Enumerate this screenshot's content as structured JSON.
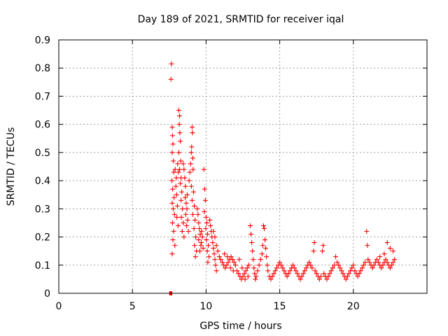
{
  "chart_data": {
    "type": "scatter",
    "title": "Day 189 of 2021, SRMTID for receiver iqal",
    "xlabel": "GPS time / hours",
    "ylabel": "SRMTID / TECUs",
    "xlim": [
      0,
      25
    ],
    "ylim": [
      0,
      0.9
    ],
    "xticks": [
      0,
      5,
      10,
      15,
      20
    ],
    "yticks": [
      0,
      0.1,
      0.2,
      0.3,
      0.4,
      0.5,
      0.6,
      0.7,
      0.8,
      0.9
    ],
    "xtick_labels": [
      "0",
      "5",
      "10",
      "15",
      "20"
    ],
    "ytick_labels": [
      "0",
      "0.1",
      "0.2",
      "0.3",
      "0.4",
      "0.5",
      "0.6",
      "0.7",
      "0.8",
      "0.9"
    ],
    "grid": true,
    "marker": "plus",
    "color": "#ff0000",
    "zero_band": {
      "x_start": 7.5,
      "x_end": 7.7,
      "y": 0
    },
    "series": [
      {
        "name": "SRMTID",
        "points": [
          [
            7.65,
            0.815
          ],
          [
            7.62,
            0.76
          ],
          [
            7.7,
            0.59
          ],
          [
            7.72,
            0.56
          ],
          [
            7.75,
            0.53
          ],
          [
            7.7,
            0.5
          ],
          [
            7.78,
            0.47
          ],
          [
            7.8,
            0.43
          ],
          [
            7.68,
            0.4
          ],
          [
            7.73,
            0.37
          ],
          [
            7.82,
            0.34
          ],
          [
            7.7,
            0.32
          ],
          [
            7.77,
            0.3
          ],
          [
            7.85,
            0.28
          ],
          [
            7.72,
            0.25
          ],
          [
            7.8,
            0.22
          ],
          [
            7.75,
            0.19
          ],
          [
            7.88,
            0.17
          ],
          [
            7.7,
            0.14
          ],
          [
            7.9,
            0.44
          ],
          [
            7.95,
            0.38
          ],
          [
            8.0,
            0.35
          ],
          [
            7.98,
            0.41
          ],
          [
            8.05,
            0.31
          ],
          [
            8.02,
            0.27
          ],
          [
            8.1,
            0.24
          ],
          [
            8.07,
            0.46
          ],
          [
            8.12,
            0.43
          ],
          [
            8.15,
            0.65
          ],
          [
            8.2,
            0.63
          ],
          [
            8.18,
            0.6
          ],
          [
            8.22,
            0.57
          ],
          [
            8.25,
            0.54
          ],
          [
            8.15,
            0.5
          ],
          [
            8.28,
            0.47
          ],
          [
            8.2,
            0.44
          ],
          [
            8.3,
            0.41
          ],
          [
            8.25,
            0.39
          ],
          [
            8.35,
            0.36
          ],
          [
            8.3,
            0.33
          ],
          [
            8.4,
            0.3
          ],
          [
            8.32,
            0.27
          ],
          [
            8.45,
            0.25
          ],
          [
            8.38,
            0.22
          ],
          [
            8.5,
            0.2
          ],
          [
            8.45,
            0.46
          ],
          [
            8.5,
            0.44
          ],
          [
            8.55,
            0.41
          ],
          [
            8.6,
            0.38
          ],
          [
            8.58,
            0.34
          ],
          [
            8.65,
            0.32
          ],
          [
            8.7,
            0.3
          ],
          [
            8.62,
            0.28
          ],
          [
            8.75,
            0.26
          ],
          [
            8.68,
            0.24
          ],
          [
            8.8,
            0.22
          ],
          [
            8.72,
            0.35
          ],
          [
            8.85,
            0.4
          ],
          [
            8.9,
            0.43
          ],
          [
            8.95,
            0.46
          ],
          [
            9.0,
            0.5
          ],
          [
            9.02,
            0.52
          ],
          [
            9.05,
            0.59
          ],
          [
            9.08,
            0.57
          ],
          [
            9.1,
            0.48
          ],
          [
            9.12,
            0.44
          ],
          [
            9.0,
            0.38
          ],
          [
            9.15,
            0.36
          ],
          [
            9.05,
            0.33
          ],
          [
            9.2,
            0.31
          ],
          [
            9.1,
            0.28
          ],
          [
            9.25,
            0.26
          ],
          [
            9.18,
            0.23
          ],
          [
            9.3,
            0.2
          ],
          [
            9.22,
            0.17
          ],
          [
            9.35,
            0.15
          ],
          [
            9.28,
            0.13
          ],
          [
            9.4,
            0.3
          ],
          [
            9.45,
            0.28
          ],
          [
            9.5,
            0.25
          ],
          [
            9.55,
            0.23
          ],
          [
            9.6,
            0.21
          ],
          [
            9.5,
            0.19
          ],
          [
            9.65,
            0.17
          ],
          [
            9.58,
            0.15
          ],
          [
            9.7,
            0.22
          ],
          [
            9.75,
            0.2
          ],
          [
            9.68,
            0.18
          ],
          [
            9.8,
            0.16
          ],
          [
            9.85,
            0.44
          ],
          [
            9.9,
            0.37
          ],
          [
            9.95,
            0.33
          ],
          [
            9.88,
            0.29
          ],
          [
            10.0,
            0.27
          ],
          [
            10.05,
            0.25
          ],
          [
            9.98,
            0.23
          ],
          [
            10.1,
            0.21
          ],
          [
            10.02,
            0.19
          ],
          [
            10.15,
            0.17
          ],
          [
            10.08,
            0.15
          ],
          [
            10.2,
            0.13
          ],
          [
            10.12,
            0.11
          ],
          [
            10.25,
            0.26
          ],
          [
            10.3,
            0.24
          ],
          [
            10.35,
            0.22
          ],
          [
            10.4,
            0.2
          ],
          [
            10.45,
            0.18
          ],
          [
            10.5,
            0.16
          ],
          [
            10.55,
            0.14
          ],
          [
            10.6,
            0.12
          ],
          [
            10.65,
            0.1
          ],
          [
            10.7,
            0.08
          ],
          [
            10.5,
            0.22
          ],
          [
            10.6,
            0.2
          ],
          [
            10.7,
            0.17
          ],
          [
            10.8,
            0.15
          ],
          [
            10.9,
            0.13
          ],
          [
            11.0,
            0.12
          ],
          [
            11.1,
            0.11
          ],
          [
            11.2,
            0.1
          ],
          [
            11.3,
            0.09
          ],
          [
            11.4,
            0.1
          ],
          [
            11.5,
            0.11
          ],
          [
            11.6,
            0.12
          ],
          [
            11.7,
            0.13
          ],
          [
            11.8,
            0.12
          ],
          [
            11.9,
            0.11
          ],
          [
            12.0,
            0.1
          ],
          [
            11.25,
            0.14
          ],
          [
            11.45,
            0.13
          ],
          [
            11.65,
            0.09
          ],
          [
            11.85,
            0.08
          ],
          [
            12.1,
            0.08
          ],
          [
            12.2,
            0.07
          ],
          [
            12.3,
            0.06
          ],
          [
            12.4,
            0.05
          ],
          [
            12.5,
            0.06
          ],
          [
            12.6,
            0.07
          ],
          [
            12.7,
            0.08
          ],
          [
            12.8,
            0.09
          ],
          [
            12.9,
            0.1
          ],
          [
            12.25,
            0.12
          ],
          [
            12.45,
            0.09
          ],
          [
            12.65,
            0.05
          ],
          [
            12.85,
            0.06
          ],
          [
            13.0,
            0.24
          ],
          [
            13.05,
            0.21
          ],
          [
            13.1,
            0.18
          ],
          [
            13.15,
            0.15
          ],
          [
            13.2,
            0.12
          ],
          [
            13.25,
            0.09
          ],
          [
            13.3,
            0.07
          ],
          [
            13.35,
            0.05
          ],
          [
            13.4,
            0.06
          ],
          [
            13.5,
            0.08
          ],
          [
            13.6,
            0.1
          ],
          [
            13.7,
            0.12
          ],
          [
            13.8,
            0.14
          ],
          [
            13.85,
            0.17
          ],
          [
            13.9,
            0.24
          ],
          [
            13.95,
            0.23
          ],
          [
            14.0,
            0.19
          ],
          [
            14.05,
            0.16
          ],
          [
            14.1,
            0.13
          ],
          [
            14.15,
            0.1
          ],
          [
            14.2,
            0.08
          ],
          [
            14.3,
            0.06
          ],
          [
            14.4,
            0.05
          ],
          [
            14.5,
            0.06
          ],
          [
            14.6,
            0.07
          ],
          [
            14.7,
            0.08
          ],
          [
            14.8,
            0.09
          ],
          [
            14.9,
            0.1
          ],
          [
            15.0,
            0.11
          ],
          [
            15.1,
            0.1
          ],
          [
            15.2,
            0.09
          ],
          [
            15.3,
            0.08
          ],
          [
            15.4,
            0.07
          ],
          [
            15.5,
            0.06
          ],
          [
            15.6,
            0.07
          ],
          [
            15.7,
            0.08
          ],
          [
            15.8,
            0.09
          ],
          [
            15.9,
            0.1
          ],
          [
            16.0,
            0.09
          ],
          [
            16.1,
            0.08
          ],
          [
            16.2,
            0.07
          ],
          [
            16.3,
            0.06
          ],
          [
            16.4,
            0.05
          ],
          [
            16.5,
            0.06
          ],
          [
            16.6,
            0.07
          ],
          [
            16.7,
            0.08
          ],
          [
            16.8,
            0.09
          ],
          [
            16.9,
            0.1
          ],
          [
            17.0,
            0.11
          ],
          [
            17.1,
            0.1
          ],
          [
            17.2,
            0.09
          ],
          [
            17.3,
            0.15
          ],
          [
            17.35,
            0.18
          ],
          [
            17.4,
            0.08
          ],
          [
            17.5,
            0.07
          ],
          [
            17.6,
            0.06
          ],
          [
            17.7,
            0.05
          ],
          [
            17.8,
            0.06
          ],
          [
            17.9,
            0.15
          ],
          [
            17.95,
            0.17
          ],
          [
            18.0,
            0.07
          ],
          [
            18.1,
            0.06
          ],
          [
            18.2,
            0.05
          ],
          [
            18.3,
            0.06
          ],
          [
            18.4,
            0.07
          ],
          [
            18.5,
            0.08
          ],
          [
            18.6,
            0.09
          ],
          [
            18.7,
            0.1
          ],
          [
            18.8,
            0.13
          ],
          [
            18.9,
            0.11
          ],
          [
            19.0,
            0.1
          ],
          [
            19.1,
            0.09
          ],
          [
            19.2,
            0.08
          ],
          [
            19.3,
            0.07
          ],
          [
            19.4,
            0.06
          ],
          [
            19.5,
            0.05
          ],
          [
            19.6,
            0.06
          ],
          [
            19.7,
            0.07
          ],
          [
            19.8,
            0.08
          ],
          [
            19.9,
            0.09
          ],
          [
            20.0,
            0.1
          ],
          [
            20.1,
            0.08
          ],
          [
            20.2,
            0.07
          ],
          [
            20.3,
            0.06
          ],
          [
            20.4,
            0.07
          ],
          [
            20.5,
            0.08
          ],
          [
            20.6,
            0.09
          ],
          [
            20.7,
            0.1
          ],
          [
            20.8,
            0.11
          ],
          [
            20.9,
            0.22
          ],
          [
            20.95,
            0.17
          ],
          [
            21.0,
            0.12
          ],
          [
            21.1,
            0.11
          ],
          [
            21.2,
            0.1
          ],
          [
            21.3,
            0.09
          ],
          [
            21.4,
            0.1
          ],
          [
            21.5,
            0.11
          ],
          [
            21.6,
            0.12
          ],
          [
            21.7,
            0.11
          ],
          [
            21.8,
            0.1
          ],
          [
            21.9,
            0.09
          ],
          [
            22.0,
            0.1
          ],
          [
            22.1,
            0.11
          ],
          [
            22.2,
            0.12
          ],
          [
            22.3,
            0.11
          ],
          [
            22.4,
            0.1
          ],
          [
            22.5,
            0.09
          ],
          [
            22.6,
            0.1
          ],
          [
            22.7,
            0.11
          ],
          [
            22.8,
            0.12
          ],
          [
            22.3,
            0.18
          ],
          [
            22.5,
            0.16
          ],
          [
            22.7,
            0.15
          ],
          [
            22.1,
            0.14
          ],
          [
            21.8,
            0.13
          ]
        ]
      }
    ]
  }
}
